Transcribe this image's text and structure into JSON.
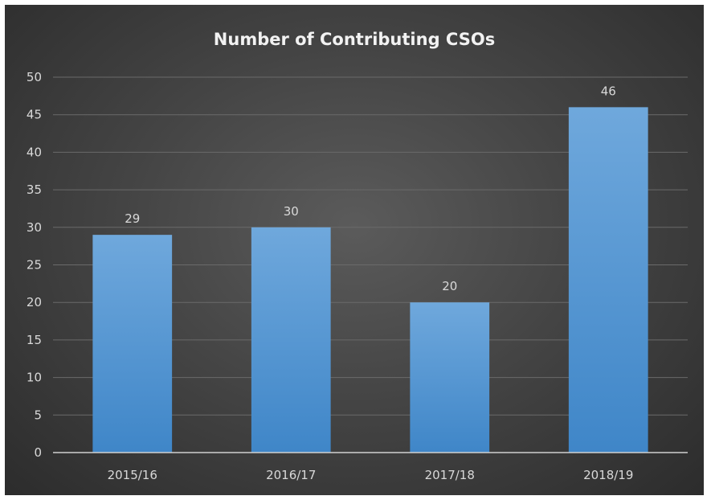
{
  "chart_data": {
    "type": "bar",
    "title": "Number of Contributing CSOs",
    "categories": [
      "2015/16",
      "2016/17",
      "2017/18",
      "2018/19"
    ],
    "values": [
      29,
      30,
      20,
      46
    ],
    "data_labels": [
      "29",
      "30",
      "20",
      "46"
    ],
    "xlabel": "",
    "ylabel": "",
    "ylim": [
      0,
      50
    ],
    "yticks": [
      0,
      5,
      10,
      15,
      20,
      25,
      30,
      35,
      40,
      45,
      50
    ],
    "grid": true,
    "legend": "none",
    "colors": {
      "bar_top": "#6fa8dc",
      "bar_bottom": "#3f86c8",
      "background": "#444444"
    }
  }
}
